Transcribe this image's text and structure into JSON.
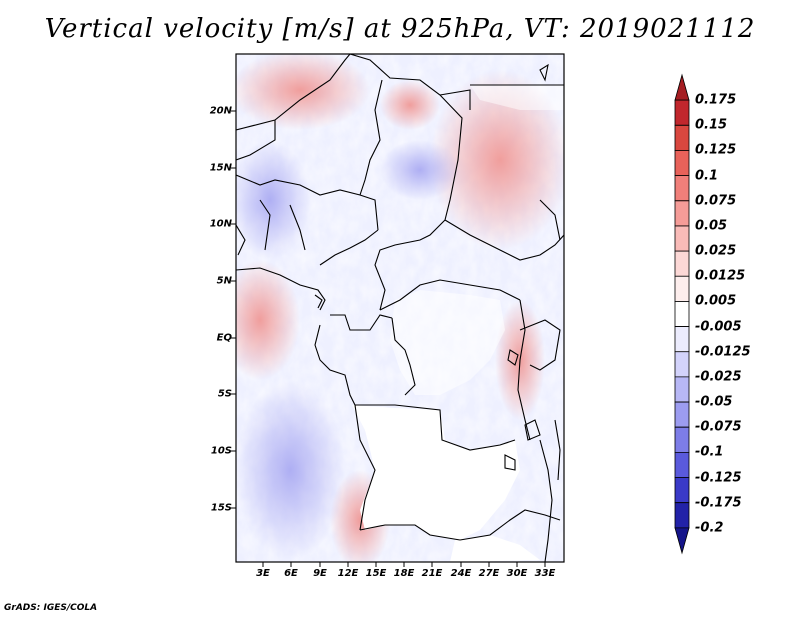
{
  "title": "Vertical velocity [m/s] at 925hPa, VT: 2019021112",
  "footer": "GrADS: IGES/COLA",
  "map": {
    "lon_range": [
      0,
      35
    ],
    "lat_range": [
      -20,
      25
    ],
    "y_ticks": [
      "20N",
      "15N",
      "10N",
      "5N",
      "EQ",
      "5S",
      "10S",
      "15S"
    ],
    "x_ticks": [
      "3E",
      "6E",
      "9E",
      "12E",
      "15E",
      "18E",
      "21E",
      "24E",
      "27E",
      "30E",
      "33E"
    ],
    "land_mask_color": "#ffffff",
    "border_color": "#000000"
  },
  "colorbar": {
    "labels": [
      "0.175",
      "0.15",
      "0.125",
      "0.1",
      "0.075",
      "0.05",
      "0.025",
      "0.0125",
      "0.005",
      "-0.005",
      "-0.0125",
      "-0.025",
      "-0.05",
      "-0.075",
      "-0.1",
      "-0.125",
      "-0.175",
      "-0.2"
    ],
    "colors": [
      "#a51d22",
      "#c1272d",
      "#d9473f",
      "#e8625a",
      "#f07f7a",
      "#f59c98",
      "#f9bbb8",
      "#fcd8d6",
      "#fdeeed",
      "#ffffff",
      "#ececfd",
      "#d3d3fb",
      "#b8b8f6",
      "#9c9cf0",
      "#7d7de8",
      "#5a5adc",
      "#3a3ac8",
      "#2222a8",
      "#15158a"
    ]
  }
}
